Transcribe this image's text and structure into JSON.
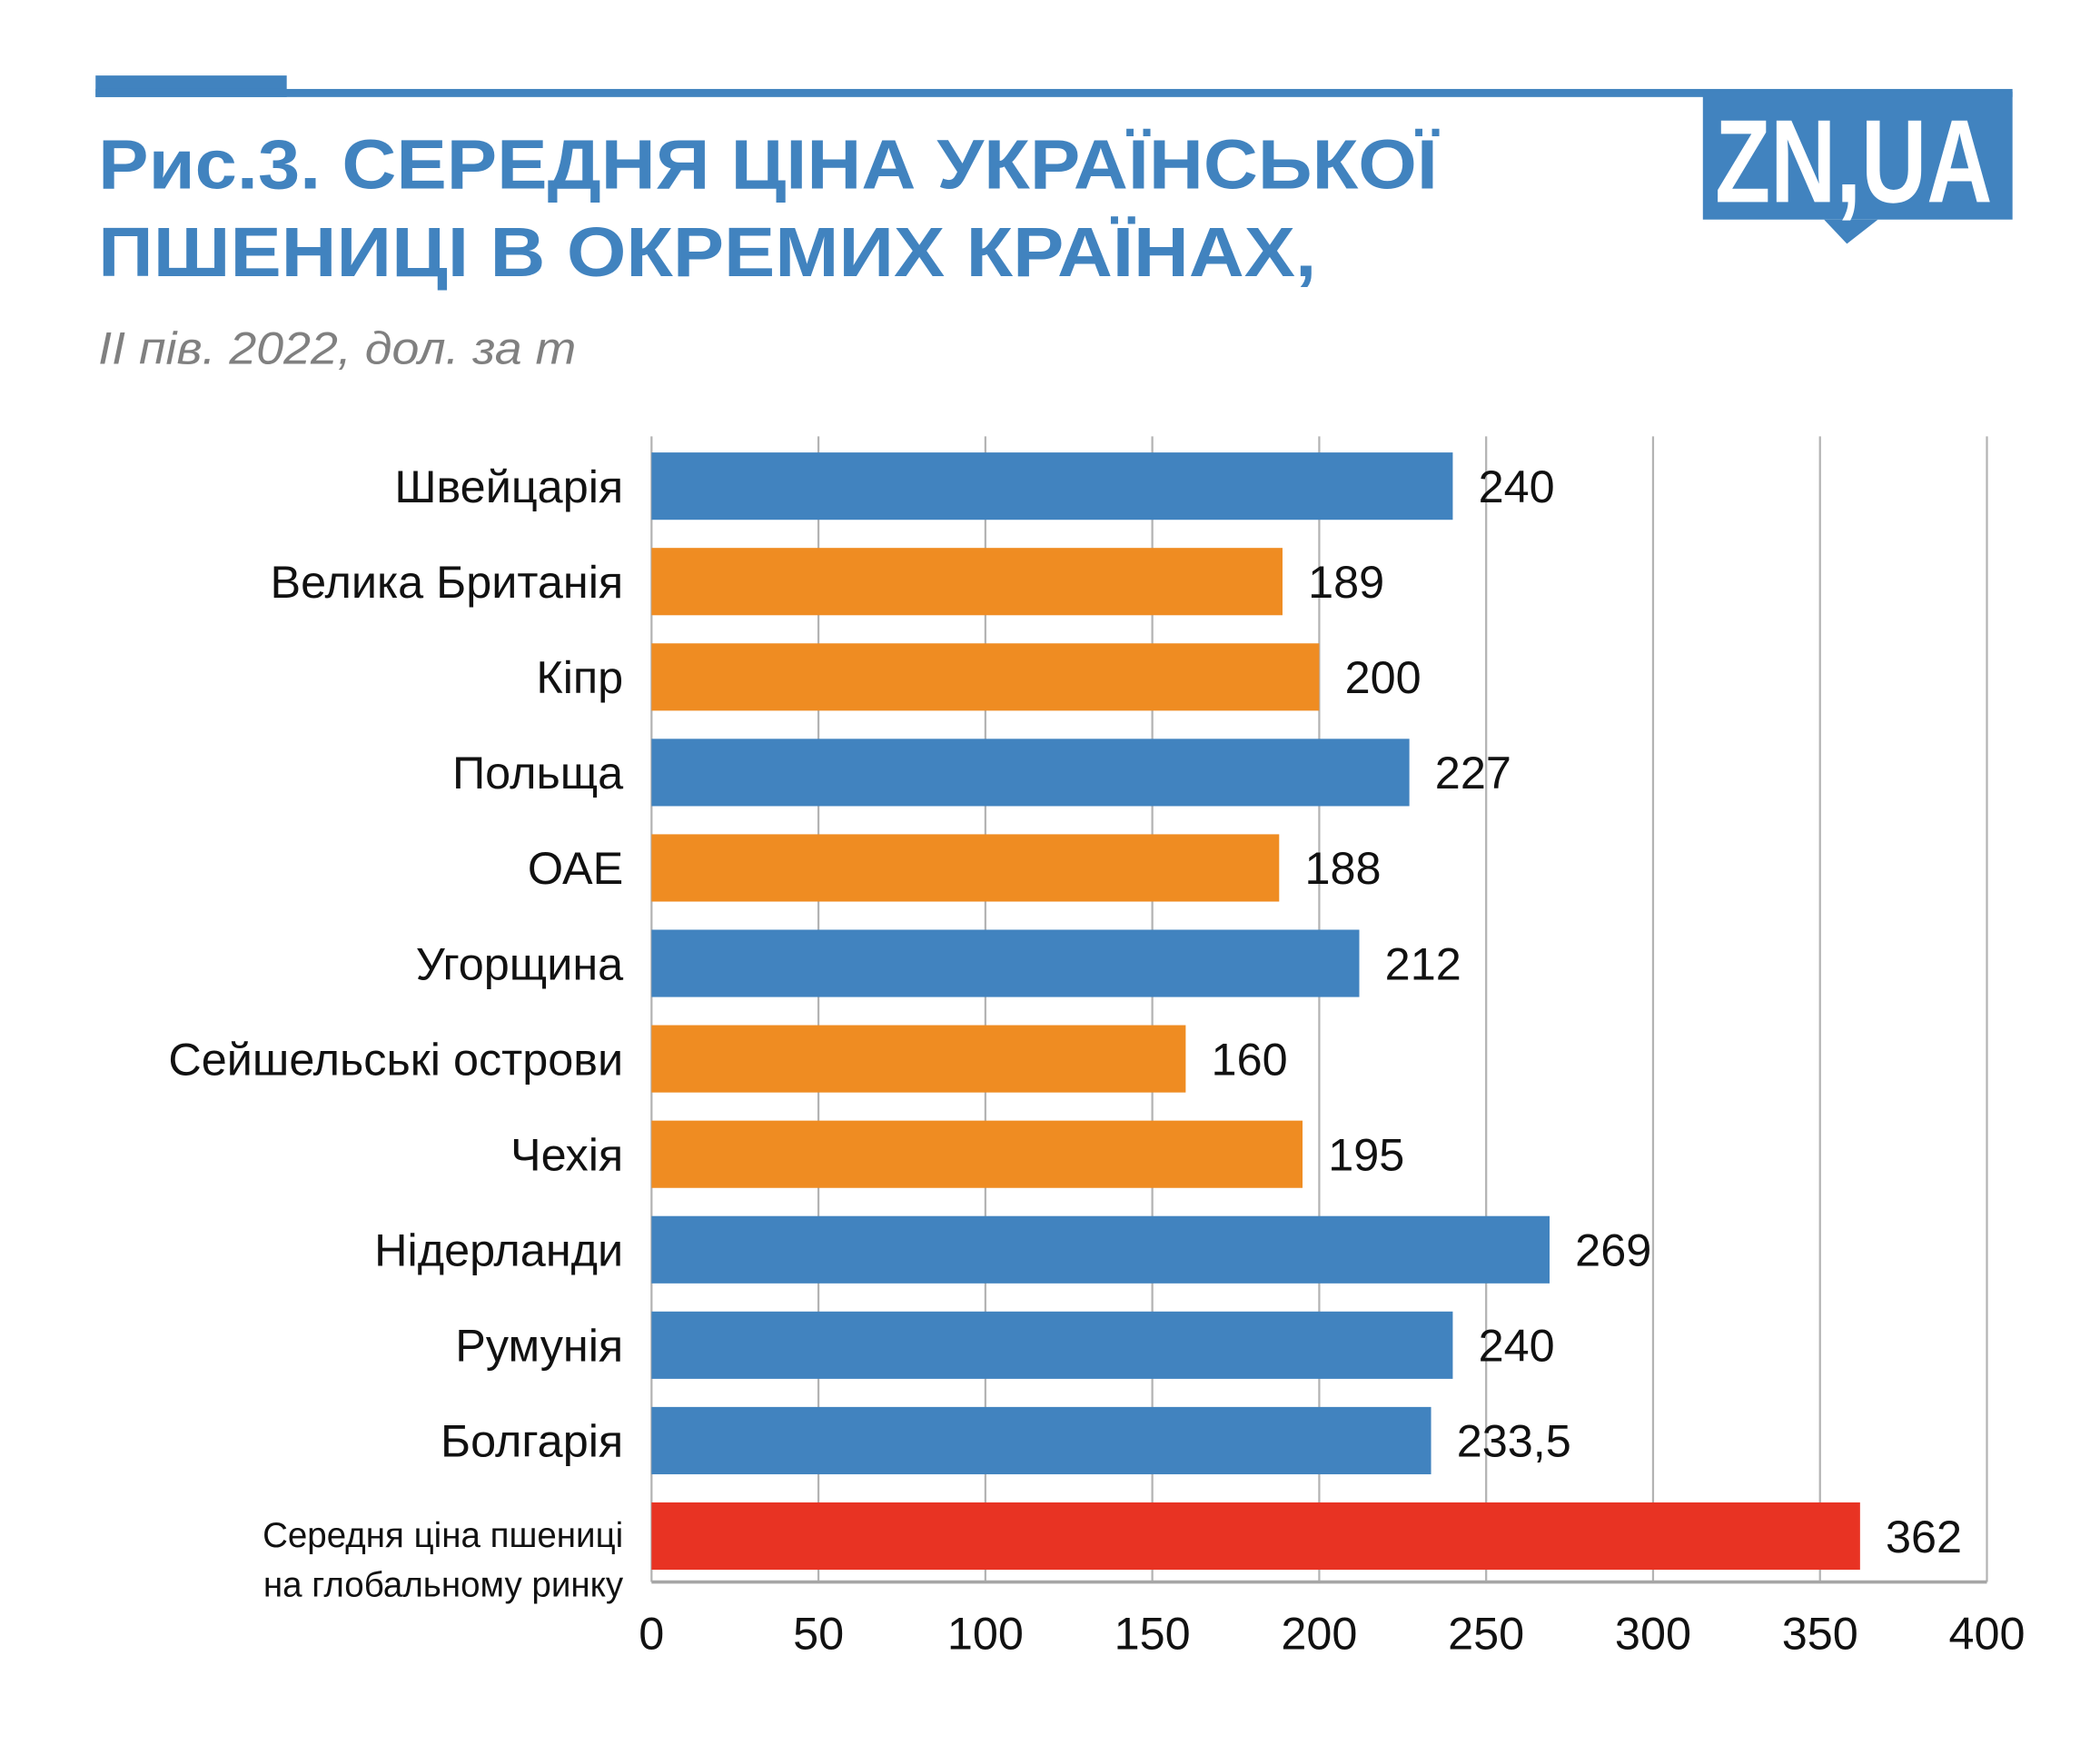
{
  "header": {
    "title_line1": "Рис.3. СЕРЕДНЯ ЦІНА УКРАЇНСЬКОЇ",
    "title_line2": "ПШЕНИЦІ В ОКРЕМИХ КРАЇНАХ,",
    "subtitle": "ІІ пів. 2022, дол. за т",
    "logo": "ZN,UA"
  },
  "colors": {
    "accent": "#4183bf",
    "blue": "#4183bf",
    "orange": "#ef8c22",
    "red": "#e83323",
    "grid": "#b3b3b3"
  },
  "chart_data": {
    "type": "bar",
    "orientation": "horizontal",
    "title": "Рис.3. СЕРЕДНЯ ЦІНА УКРАЇНСЬКОЇ ПШЕНИЦІ В ОКРЕМИХ КРАЇНАХ,",
    "subtitle": "ІІ пів. 2022, дол. за т",
    "categories": [
      "Швейцарія",
      "Велика Британія",
      "Кіпр",
      "Польща",
      "ОАЕ",
      "Угорщина",
      "Сейшельські острови",
      "Чехія",
      "Нідерланди",
      "Румунія",
      "Болгарія",
      "Середня ціна пшениці на глобальному ринку"
    ],
    "category_lines": [
      [
        "Швейцарія"
      ],
      [
        "Велика Британія"
      ],
      [
        "Кіпр"
      ],
      [
        "Польща"
      ],
      [
        "ОАЕ"
      ],
      [
        "Угорщина"
      ],
      [
        "Сейшельські острови"
      ],
      [
        "Чехія"
      ],
      [
        "Нідерланди"
      ],
      [
        "Румунія"
      ],
      [
        "Болгарія"
      ],
      [
        "Середня ціна пшениці",
        "на глобальному ринку"
      ]
    ],
    "values": [
      240,
      189,
      200,
      227,
      188,
      212,
      160,
      195,
      269,
      240,
      233.5,
      362
    ],
    "value_labels": [
      "240",
      "189",
      "200",
      "227",
      "188",
      "212",
      "160",
      "195",
      "269",
      "240",
      "233,5",
      "362"
    ],
    "bar_colors": [
      "#4183bf",
      "#ef8c22",
      "#ef8c22",
      "#4183bf",
      "#ef8c22",
      "#4183bf",
      "#ef8c22",
      "#ef8c22",
      "#4183bf",
      "#4183bf",
      "#4183bf",
      "#e83323"
    ],
    "xlim": [
      0,
      400
    ],
    "xticks": [
      0,
      50,
      100,
      150,
      200,
      250,
      300,
      350,
      400
    ],
    "xtick_labels": [
      "0",
      "50",
      "100",
      "150",
      "200",
      "250",
      "300",
      "350",
      "400"
    ],
    "grid": "vertical",
    "legend": "none",
    "xlabel": "",
    "ylabel": ""
  }
}
